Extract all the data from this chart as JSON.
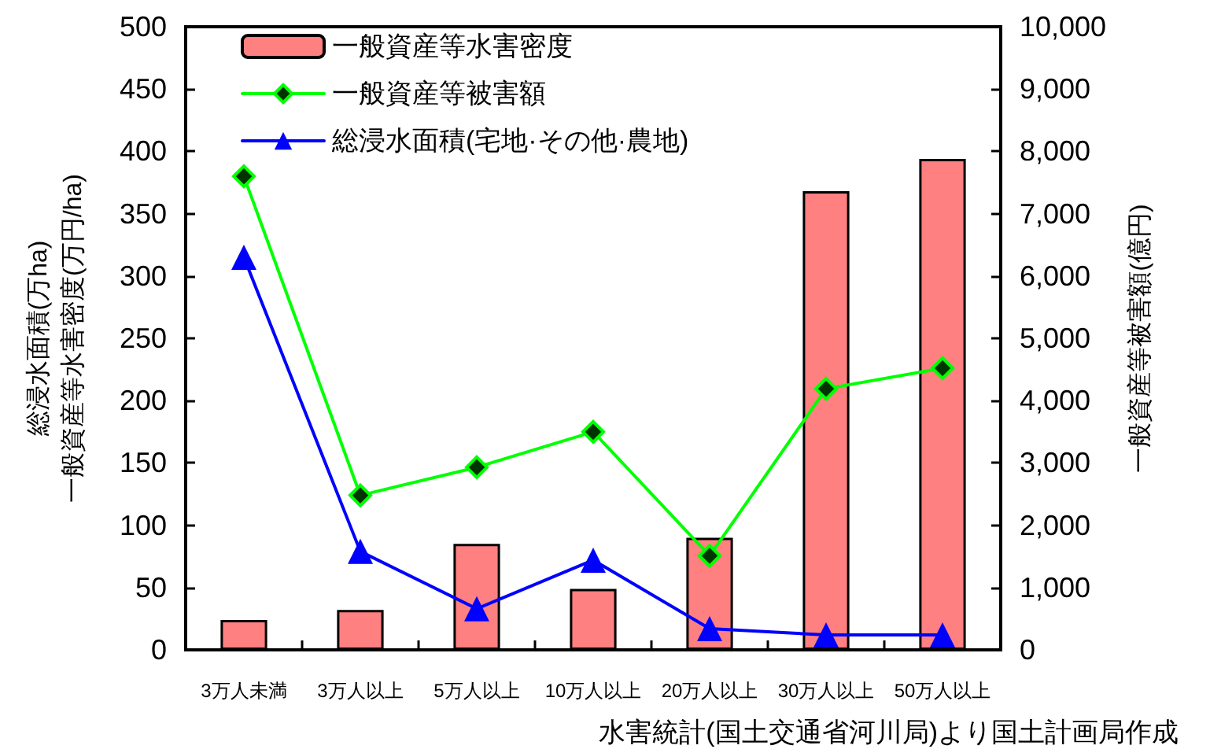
{
  "chart_data": {
    "type": "bar",
    "categories": [
      "3万人未満",
      "3万人以上",
      "5万人以上",
      "10万人以上",
      "20万人以上",
      "30万人以上",
      "50万人以上"
    ],
    "series": [
      {
        "name": "一般資産等水害密度",
        "color": "#ff8080",
        "values": [
          24,
          32,
          85,
          49,
          90,
          368,
          394
        ]
      },
      {
        "name": "一般資産等被害額",
        "type": "line",
        "axis": "y2",
        "color": "#00ff00",
        "marker": "diamond",
        "values": [
          7600,
          2480,
          2930,
          3500,
          1510,
          4190,
          4520
        ]
      },
      {
        "name": "総浸水面積(宅地·その他·農地)",
        "type": "line",
        "color": "#0000ff",
        "marker": "triangle",
        "values": [
          315,
          79,
          33,
          72,
          17,
          12,
          12
        ]
      }
    ],
    "ylabel": "総浸水面積(万ha)\n一般資産等水害密度(万円/ha)",
    "y2label": "一般資産等被害額(億円)",
    "ylim": [
      0,
      500
    ],
    "yticks": [
      0,
      50,
      100,
      150,
      200,
      250,
      300,
      350,
      400,
      450,
      500
    ],
    "y2lim": [
      0,
      10000
    ],
    "y2ticks": [
      0,
      {
        "value": 1000,
        "label": "1,000"
      },
      {
        "value": 2000,
        "label": "2,000"
      },
      {
        "value": 3000,
        "label": "3,000"
      },
      {
        "value": 4000,
        "label": "4,000"
      },
      {
        "value": 5000,
        "label": "5,000"
      },
      {
        "value": 6000,
        "label": "6,000"
      },
      {
        "value": 7000,
        "label": "7,000"
      },
      {
        "value": 8000,
        "label": "8,000"
      },
      {
        "value": 9000,
        "label": "9,000"
      },
      {
        "value": 10000,
        "label": "10,000"
      }
    ],
    "grid": false,
    "legend": "top left",
    "annotations": [
      "水害統計(国土交通省河川局)より国土計画局作成"
    ]
  }
}
